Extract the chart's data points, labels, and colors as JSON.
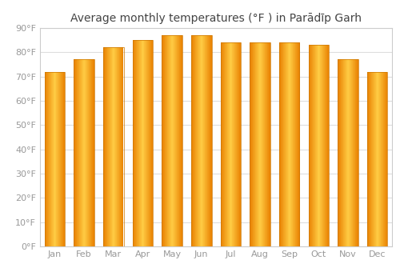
{
  "title": "Average monthly temperatures (°F ) in Parādīp Garh",
  "months": [
    "Jan",
    "Feb",
    "Mar",
    "Apr",
    "May",
    "Jun",
    "Jul",
    "Aug",
    "Sep",
    "Oct",
    "Nov",
    "Dec"
  ],
  "values": [
    72,
    77,
    82,
    85,
    87,
    87,
    84,
    84,
    84,
    83,
    77,
    72
  ],
  "ylim": [
    0,
    90
  ],
  "yticks": [
    0,
    10,
    20,
    30,
    40,
    50,
    60,
    70,
    80,
    90
  ],
  "ytick_labels": [
    "0°F",
    "10°F",
    "20°F",
    "30°F",
    "40°F",
    "50°F",
    "60°F",
    "70°F",
    "80°F",
    "90°F"
  ],
  "bar_color_center": "#FFCC44",
  "bar_color_edge": "#E88000",
  "bar_edge_color": "#CC7700",
  "background_color": "#FFFFFF",
  "title_fontsize": 10,
  "axis_fontsize": 8,
  "tick_color": "#999999",
  "grid_color": "#DDDDDD",
  "grid_linewidth": 0.8,
  "title_color": "#444444"
}
